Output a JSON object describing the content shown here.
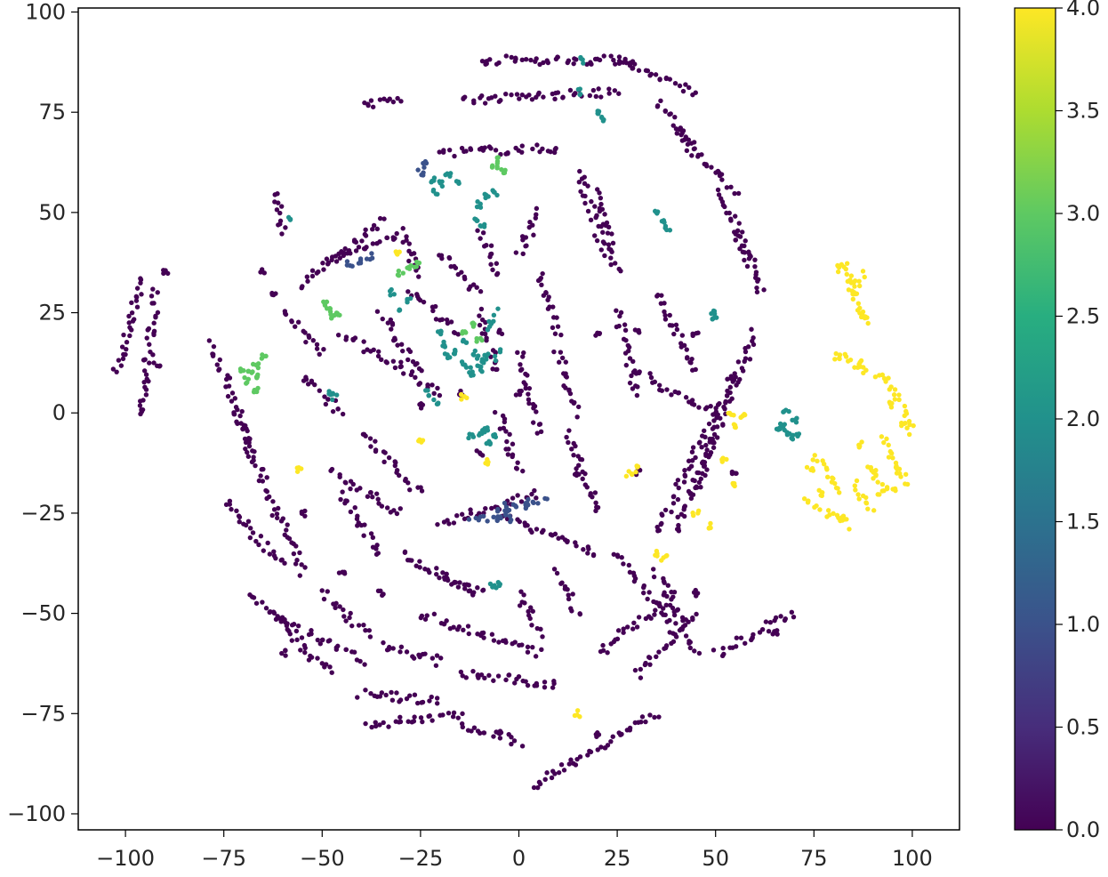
{
  "chart_data": {
    "type": "scatter",
    "title": "",
    "xlabel": "",
    "ylabel": "",
    "xlim": [
      -112,
      112
    ],
    "ylim": [
      -104,
      101
    ],
    "x_ticks": [
      -100,
      -75,
      -50,
      -25,
      0,
      25,
      50,
      75,
      100
    ],
    "x_tick_labels": [
      "−100",
      "−75",
      "−50",
      "−25",
      "0",
      "25",
      "50",
      "75",
      "100"
    ],
    "y_ticks": [
      -100,
      -75,
      -50,
      -25,
      0,
      25,
      50,
      75,
      100
    ],
    "y_tick_labels": [
      "−100",
      "−75",
      "−50",
      "−25",
      "0",
      "25",
      "50",
      "75",
      "100"
    ],
    "grid": false,
    "colormap": "viridis",
    "colorbar": {
      "range": [
        0.0,
        4.0
      ],
      "ticks": [
        0.0,
        0.5,
        1.0,
        1.5,
        2.0,
        2.5,
        3.0,
        3.5,
        4.0
      ],
      "tick_labels": [
        "0.0",
        "0.5",
        "1.0",
        "1.5",
        "2.0",
        "2.5",
        "3.0",
        "3.5",
        "4.0"
      ]
    },
    "colors": {
      "c0": "#440154",
      "c1": "#3b528b",
      "c2": "#21918c",
      "c3": "#5ec962",
      "c4": "#fde725"
    },
    "series": [
      {
        "value": 0,
        "arcs": [
          [
            -102,
            10,
            -96,
            34,
            0
          ],
          [
            -96,
            2,
            -92,
            30,
            0
          ],
          [
            -78,
            17,
            -68,
            -10,
            0
          ],
          [
            -72,
            0,
            -55,
            -40,
            0
          ],
          [
            -75,
            -22,
            -60,
            -38,
            0
          ],
          [
            -68,
            -45,
            -48,
            -65,
            0
          ],
          [
            -62,
            -50,
            -40,
            -62,
            0
          ],
          [
            -40,
            77,
            -30,
            78,
            0
          ],
          [
            -62,
            55,
            -60,
            45,
            0
          ],
          [
            -55,
            32,
            -35,
            48,
            0
          ],
          [
            -50,
            38,
            -30,
            44,
            0
          ],
          [
            -45,
            20,
            -20,
            5,
            0
          ],
          [
            -35,
            25,
            -25,
            10,
            0
          ],
          [
            -48,
            -15,
            -30,
            -25,
            0
          ],
          [
            -45,
            -20,
            -35,
            -35,
            0
          ],
          [
            -40,
            -5,
            -25,
            -20,
            0
          ],
          [
            -10,
            88,
            30,
            88,
            0
          ],
          [
            -15,
            78,
            25,
            80,
            0
          ],
          [
            -20,
            65,
            10,
            66,
            0
          ],
          [
            25,
            88,
            45,
            80,
            0
          ],
          [
            35,
            78,
            45,
            65,
            0
          ],
          [
            40,
            70,
            55,
            55,
            0
          ],
          [
            50,
            55,
            60,
            38,
            0
          ],
          [
            55,
            45,
            62,
            30,
            0
          ],
          [
            60,
            20,
            40,
            -30,
            0
          ],
          [
            55,
            10,
            35,
            -30,
            0
          ],
          [
            50,
            -5,
            45,
            -20,
            0
          ],
          [
            20,
            55,
            25,
            35,
            0
          ],
          [
            25,
            25,
            30,
            5,
            0
          ],
          [
            15,
            60,
            22,
            40,
            0
          ],
          [
            5,
            35,
            10,
            20,
            0
          ],
          [
            10,
            15,
            15,
            0,
            0
          ],
          [
            12,
            -5,
            20,
            -25,
            0
          ],
          [
            -10,
            25,
            -5,
            10,
            0
          ],
          [
            0,
            15,
            5,
            -5,
            0
          ],
          [
            -30,
            -35,
            -10,
            -45,
            0
          ],
          [
            -25,
            -50,
            5,
            -60,
            0
          ],
          [
            -15,
            -65,
            10,
            -68,
            0
          ],
          [
            -5,
            -25,
            20,
            -35,
            0
          ],
          [
            -20,
            -28,
            5,
            -20,
            0
          ],
          [
            25,
            -35,
            40,
            -55,
            0
          ],
          [
            35,
            -40,
            45,
            -60,
            0
          ],
          [
            20,
            -60,
            40,
            -45,
            0
          ],
          [
            30,
            -65,
            45,
            -50,
            0
          ],
          [
            -40,
            -70,
            -20,
            -72,
            0
          ],
          [
            -38,
            -78,
            -15,
            -75,
            0
          ],
          [
            -15,
            -78,
            0,
            -82,
            0
          ],
          [
            -35,
            -58,
            -20,
            -62,
            0
          ],
          [
            -50,
            -45,
            -38,
            -55,
            0
          ],
          [
            3,
            -93,
            35,
            -75,
            0
          ],
          [
            50,
            -60,
            70,
            -50,
            0
          ],
          [
            -20,
            40,
            -10,
            30,
            0
          ],
          [
            -30,
            45,
            -25,
            35,
            0
          ],
          [
            -28,
            30,
            -15,
            20,
            0
          ],
          [
            30,
            10,
            50,
            0,
            0
          ],
          [
            35,
            30,
            45,
            10,
            0
          ],
          [
            -10,
            45,
            -5,
            35,
            0
          ],
          [
            -55,
            10,
            -45,
            0,
            0
          ],
          [
            -60,
            25,
            -50,
            15,
            0
          ],
          [
            0,
            40,
            5,
            50,
            0
          ],
          [
            -5,
            0,
            0,
            -15,
            0
          ],
          [
            10,
            -40,
            15,
            -50,
            0
          ],
          [
            -20,
            -40,
            -10,
            -45,
            0
          ],
          [
            0,
            -45,
            5,
            -55,
            0
          ]
        ],
        "points": [
          [
            -90,
            35
          ],
          [
            -92,
            12
          ],
          [
            -96,
            0
          ],
          [
            -65,
            35
          ],
          [
            -62,
            30
          ],
          [
            -25,
            2
          ],
          [
            -15,
            5
          ],
          [
            -5,
            20
          ],
          [
            20,
            20
          ],
          [
            30,
            20
          ],
          [
            45,
            20
          ],
          [
            -45,
            -40
          ],
          [
            -35,
            -45
          ],
          [
            -10,
            -10
          ],
          [
            0,
            5
          ],
          [
            15,
            -15
          ],
          [
            30,
            -15
          ],
          [
            45,
            -45
          ],
          [
            -55,
            -25
          ],
          [
            65,
            -55
          ],
          [
            55,
            -15
          ],
          [
            -5,
            -80
          ],
          [
            20,
            -80
          ],
          [
            -60,
            -60
          ]
        ]
      },
      {
        "value": 1,
        "arcs": [
          [
            -6,
            -24,
            7,
            -22,
            1
          ],
          [
            -12,
            -27,
            -2,
            -26,
            1
          ]
        ],
        "points": [
          [
            -40,
            38
          ],
          [
            -38,
            39
          ],
          [
            -43,
            37
          ],
          [
            -24,
            62
          ],
          [
            -25,
            60
          ],
          [
            -5,
            -26
          ],
          [
            -3,
            -25
          ],
          [
            2,
            -23
          ]
        ]
      },
      {
        "value": 2,
        "arcs": [
          [
            -12,
            12,
            -4,
            15,
            2
          ],
          [
            -8,
            20,
            -5,
            25,
            2
          ]
        ],
        "points": [
          [
            -22,
            58
          ],
          [
            -20,
            57
          ],
          [
            -18,
            59
          ],
          [
            -16,
            58
          ],
          [
            -21,
            55
          ],
          [
            -10,
            52
          ],
          [
            -8,
            54
          ],
          [
            -6,
            55
          ],
          [
            -11,
            48
          ],
          [
            -9,
            47
          ],
          [
            -20,
            20
          ],
          [
            -19,
            17
          ],
          [
            -18,
            14
          ],
          [
            -14,
            12
          ],
          [
            -12,
            10
          ],
          [
            -10,
            11
          ],
          [
            -9,
            14
          ],
          [
            -11,
            15
          ],
          [
            -10,
            -5
          ],
          [
            -8,
            -4
          ],
          [
            -6,
            -6
          ],
          [
            -12,
            -6
          ],
          [
            -8,
            -7
          ],
          [
            67,
            -3
          ],
          [
            68,
            -5
          ],
          [
            70,
            -2
          ],
          [
            69,
            -6
          ],
          [
            66,
            -4
          ],
          [
            71,
            -5
          ],
          [
            68,
            1
          ],
          [
            35,
            50
          ],
          [
            37,
            48
          ],
          [
            38,
            46
          ],
          [
            49,
            25
          ],
          [
            50,
            23
          ],
          [
            -48,
            5
          ],
          [
            -47,
            4
          ],
          [
            -5,
            -43
          ],
          [
            -7,
            -43
          ],
          [
            -58,
            48
          ],
          [
            20,
            75
          ],
          [
            21,
            73
          ],
          [
            15,
            80
          ],
          [
            -30,
            25
          ],
          [
            -28,
            28
          ],
          [
            -32,
            30
          ],
          [
            16,
            88
          ],
          [
            -23,
            5
          ],
          [
            -21,
            3
          ],
          [
            -16,
            15
          ],
          [
            -14,
            18
          ]
        ]
      },
      {
        "value": 3,
        "arcs": [],
        "points": [
          [
            -68,
            10
          ],
          [
            -67,
            12
          ],
          [
            -66,
            9
          ],
          [
            -69,
            8
          ],
          [
            -65,
            14
          ],
          [
            -67,
            6
          ],
          [
            -70,
            11
          ],
          [
            -48,
            26
          ],
          [
            -47,
            24
          ],
          [
            -46,
            25
          ],
          [
            -49,
            27
          ],
          [
            -28,
            36
          ],
          [
            -30,
            35
          ],
          [
            -26,
            37
          ],
          [
            -5,
            63
          ],
          [
            -6,
            61
          ],
          [
            -4,
            60
          ],
          [
            -12,
            22
          ],
          [
            -14,
            20
          ],
          [
            -10,
            18
          ]
        ]
      },
      {
        "value": 4,
        "arcs": [
          [
            82,
            38,
            88,
            22,
            4
          ],
          [
            82,
            14,
            94,
            8,
            4
          ],
          [
            94,
            8,
            100,
            -5,
            4
          ],
          [
            93,
            -6,
            98,
            -18,
            4
          ],
          [
            75,
            -10,
            82,
            -20,
            4
          ],
          [
            73,
            -22,
            84,
            -28,
            4
          ],
          [
            88,
            -13,
            96,
            -20,
            4
          ],
          [
            85,
            -18,
            90,
            -25,
            4
          ],
          [
            84,
            28,
            88,
            35,
            4
          ]
        ],
        "points": [
          [
            81,
            36
          ],
          [
            84,
            33
          ],
          [
            88,
            24
          ],
          [
            81,
            14
          ],
          [
            86,
            12
          ],
          [
            95,
            2
          ],
          [
            98,
            -3
          ],
          [
            74,
            -14
          ],
          [
            77,
            -20
          ],
          [
            82,
            -26
          ],
          [
            90,
            -15
          ],
          [
            92,
            -20
          ],
          [
            96,
            -14
          ],
          [
            87,
            -8
          ],
          [
            54,
            0
          ],
          [
            57,
            -1
          ],
          [
            55,
            -3
          ],
          [
            52,
            -12
          ],
          [
            55,
            -18
          ],
          [
            28,
            -15
          ],
          [
            30,
            -14
          ],
          [
            45,
            -25
          ],
          [
            48,
            -28
          ],
          [
            35,
            -35
          ],
          [
            37,
            -36
          ],
          [
            15,
            -75
          ],
          [
            -25,
            -7
          ],
          [
            -14,
            4
          ],
          [
            -31,
            40
          ],
          [
            -8,
            -12
          ],
          [
            -56,
            -14
          ]
        ]
      }
    ]
  }
}
